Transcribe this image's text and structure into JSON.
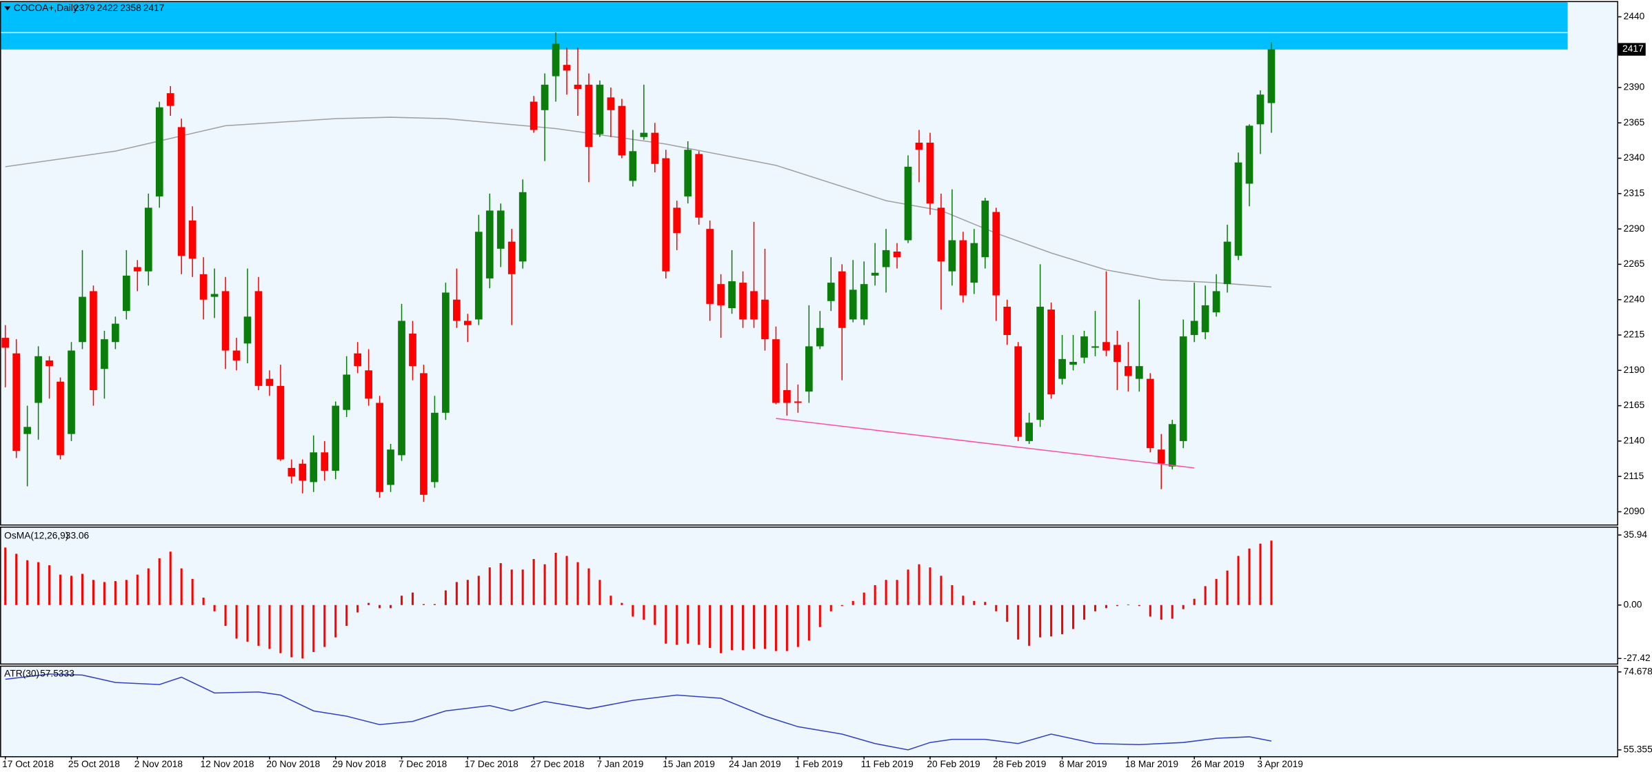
{
  "chart_data": [
    {
      "type": "candlestick",
      "title": "COCOA+,Daily",
      "categories": [
        "17 Oct 2018",
        null,
        null,
        null,
        null,
        null,
        "25 Oct 2018",
        null,
        null,
        null,
        null,
        null,
        "2 Nov 2018",
        null,
        null,
        null,
        null,
        null,
        "12 Nov 2018",
        null,
        null,
        null,
        null,
        null,
        "20 Nov 2018",
        null,
        null,
        null,
        null,
        null,
        "29 Nov 2018",
        null,
        null,
        null,
        null,
        null,
        "7 Dec 2018",
        null,
        null,
        null,
        null,
        null,
        "17 Dec 2018",
        null,
        null,
        null,
        null,
        null,
        "27 Dec 2018",
        null,
        null,
        null,
        null,
        null,
        "7 Jan 2019",
        null,
        null,
        null,
        null,
        null,
        "15 Jan 2019",
        null,
        null,
        null,
        null,
        null,
        "24 Jan 2019",
        null,
        null,
        null,
        null,
        null,
        "1 Feb 2019",
        null,
        null,
        null,
        null,
        null,
        "11 Feb 2019",
        null,
        null,
        null,
        null,
        null,
        "20 Feb 2019",
        null,
        null,
        null,
        null,
        null,
        "28 Feb 2019",
        null,
        null,
        null,
        null,
        null,
        "8 Mar 2019",
        null,
        null,
        null,
        null,
        null,
        "18 Mar 2019",
        null,
        null,
        null,
        null,
        null,
        "26 Mar 2019",
        null,
        null,
        null,
        null,
        null,
        "3 Apr 2019",
        null
      ],
      "open": [
        2213,
        2202,
        2145,
        2167,
        2197,
        2182,
        2145,
        2210,
        2246,
        2191,
        2210,
        2232,
        2263,
        2260,
        2313,
        2386,
        2362,
        2296,
        2258,
        2242,
        2246,
        2204,
        2209,
        2246,
        2184,
        2179,
        2121,
        2124,
        2111,
        2132,
        2119,
        2162,
        2202,
        2190,
        2167,
        2109,
        2130,
        2216,
        2188,
        2111,
        2160,
        2240,
        2225,
        2226,
        2255,
        2276,
        2281,
        2267,
        2380,
        2374,
        2398,
        2406,
        2392,
        2392,
        2357,
        2383,
        2377,
        2324,
        2355,
        2358,
        2340,
        2305,
        2313,
        2343,
        2290,
        2251,
        2234,
        2252,
        2246,
        2240,
        2212,
        2176,
        2168,
        2175,
        2207,
        2239,
        2260,
        2226,
        2226,
        2257,
        2263,
        2274,
        2282,
        2351,
        2351,
        2305,
        2260,
        2282,
        2252,
        2270,
        2302,
        2235,
        2207,
        2140,
        2155,
        2233,
        2184,
        2194,
        2199,
        2206,
        2210,
        2208,
        2193,
        2184,
        2184,
        2134,
        2122,
        2140,
        2215,
        2217,
        2231,
        2251,
        2271,
        2322,
        2364,
        2379
      ],
      "high": [
        2222,
        2212,
        2165,
        2207,
        2200,
        2185,
        2210,
        2275,
        2250,
        2218,
        2228,
        2275,
        2268,
        2315,
        2380,
        2391,
        2368,
        2306,
        2270,
        2262,
        2256,
        2213,
        2262,
        2256,
        2190,
        2194,
        2127,
        2127,
        2144,
        2140,
        2168,
        2200,
        2210,
        2205,
        2172,
        2138,
        2237,
        2225,
        2194,
        2172,
        2252,
        2262,
        2230,
        2300,
        2315,
        2308,
        2290,
        2325,
        2384,
        2400,
        2429,
        2418,
        2418,
        2400,
        2395,
        2390,
        2382,
        2360,
        2392,
        2365,
        2346,
        2310,
        2352,
        2345,
        2296,
        2258,
        2275,
        2260,
        2295,
        2276,
        2221,
        2195,
        2180,
        2236,
        2232,
        2270,
        2265,
        2268,
        2267,
        2280,
        2290,
        2280,
        2342,
        2360,
        2358,
        2315,
        2318,
        2288,
        2290,
        2312,
        2305,
        2240,
        2210,
        2160,
        2265,
        2238,
        2215,
        2215,
        2218,
        2232,
        2260,
        2218,
        2210,
        2240,
        2188,
        2145,
        2155,
        2226,
        2252,
        2250,
        2258,
        2293,
        2344,
        2364,
        2388,
        2422
      ],
      "low": [
        2178,
        2128,
        2108,
        2141,
        2170,
        2127,
        2140,
        2205,
        2165,
        2170,
        2205,
        2226,
        2246,
        2250,
        2305,
        2370,
        2258,
        2256,
        2226,
        2227,
        2191,
        2190,
        2195,
        2176,
        2172,
        2126,
        2110,
        2103,
        2104,
        2112,
        2113,
        2157,
        2188,
        2165,
        2100,
        2104,
        2126,
        2183,
        2097,
        2107,
        2155,
        2220,
        2210,
        2222,
        2248,
        2263,
        2222,
        2262,
        2358,
        2338,
        2380,
        2385,
        2370,
        2323,
        2355,
        2355,
        2340,
        2320,
        2353,
        2330,
        2255,
        2275,
        2308,
        2293,
        2225,
        2213,
        2230,
        2220,
        2220,
        2204,
        2166,
        2158,
        2160,
        2167,
        2205,
        2232,
        2183,
        2224,
        2222,
        2250,
        2245,
        2262,
        2280,
        2323,
        2300,
        2233,
        2250,
        2238,
        2244,
        2262,
        2225,
        2208,
        2140,
        2138,
        2150,
        2170,
        2180,
        2190,
        2195,
        2200,
        2200,
        2176,
        2175,
        2175,
        2132,
        2106,
        2120,
        2135,
        2210,
        2212,
        2228,
        2245,
        2268,
        2306,
        2343,
        2358
      ],
      "close": [
        2206,
        2133,
        2150,
        2200,
        2193,
        2130,
        2204,
        2242,
        2176,
        2212,
        2223,
        2257,
        2260,
        2305,
        2376,
        2377,
        2271,
        2269,
        2240,
        2244,
        2204,
        2197,
        2228,
        2179,
        2179,
        2127,
        2115,
        2112,
        2132,
        2119,
        2165,
        2187,
        2193,
        2170,
        2104,
        2134,
        2225,
        2193,
        2102,
        2160,
        2245,
        2225,
        2222,
        2288,
        2303,
        2303,
        2258,
        2316,
        2360,
        2392,
        2421,
        2402,
        2389,
        2348,
        2392,
        2374,
        2342,
        2345,
        2358,
        2336,
        2260,
        2287,
        2346,
        2298,
        2237,
        2236,
        2253,
        2226,
        2226,
        2212,
        2167,
        2167,
        2167,
        2207,
        2220,
        2252,
        2220,
        2247,
        2251,
        2259,
        2275,
        2270,
        2334,
        2346,
        2308,
        2267,
        2282,
        2243,
        2280,
        2310,
        2243,
        2215,
        2143,
        2153,
        2235,
        2173,
        2198,
        2196,
        2214,
        2207,
        2204,
        2196,
        2186,
        2193,
        2135,
        2124,
        2152,
        2214,
        2225,
        2236,
        2246,
        2281,
        2337,
        2363,
        2385,
        2417
      ],
      "up_color": "#0b7d0b",
      "down_color": "#ff0000",
      "ylim": [
        2081,
        2450.4
      ],
      "yticks": [
        2440,
        2415,
        2390,
        2365,
        2340,
        2315,
        2290,
        2265,
        2240,
        2215,
        2190,
        2165,
        2140,
        2115,
        2090
      ],
      "ma": {
        "color": "#a0a0a0",
        "x": [
          0,
          10,
          20,
          30,
          35,
          40,
          50,
          60,
          70,
          80,
          85,
          90,
          95,
          100,
          105,
          110,
          115
        ],
        "values": [
          2334,
          2345,
          2363,
          2368,
          2369,
          2368,
          2361,
          2350,
          2335,
          2310,
          2303,
          2287,
          2273,
          2261,
          2254,
          2252,
          2249
        ]
      },
      "trendline": {
        "color": "#ff4da6",
        "x": [
          70,
          108
        ],
        "values": [
          2156,
          2121
        ]
      }
    },
    {
      "type": "bar",
      "title": "OsMA(12,26,9)",
      "values": [
        29.5,
        26.3,
        23,
        22,
        20.4,
        15.6,
        15,
        16,
        12.9,
        11.8,
        12.3,
        12.9,
        15.6,
        18.8,
        24,
        27.4,
        18.8,
        13.4,
        3.8,
        -3.2,
        -10.7,
        -17.2,
        -18.8,
        -20.9,
        -22.5,
        -24.7,
        -26.8,
        -27.4,
        -24.1,
        -21.5,
        -16.6,
        -10.7,
        -3.8,
        1.1,
        -1.6,
        -1.6,
        4.8,
        6.4,
        0.5,
        0.5,
        7.5,
        11.8,
        12.9,
        15,
        19.3,
        21.5,
        18.2,
        18.2,
        23.6,
        20.9,
        26.8,
        25.2,
        22,
        18.8,
        12.9,
        4.8,
        1.1,
        -5.9,
        -7.5,
        -10.2,
        -19.8,
        -20.4,
        -19.8,
        -20.4,
        -22,
        -24.7,
        -23.1,
        -23.1,
        -22.5,
        -22.5,
        -23.6,
        -23.6,
        -21.5,
        -18.2,
        -11.3,
        -3.2,
        -0.5,
        2.1,
        6.4,
        10.2,
        12.9,
        12.9,
        18.2,
        20.9,
        19.3,
        15,
        10.2,
        4.8,
        2.1,
        1.6,
        -3.2,
        -8.6,
        -17.7,
        -20.9,
        -16.6,
        -16.1,
        -15,
        -12.3,
        -7.5,
        -3.2,
        -1.6,
        -0.5,
        0.3,
        -0.5,
        -5.9,
        -7.5,
        -7,
        -2.1,
        3.2,
        9.7,
        13.4,
        17.7,
        25.2,
        29,
        31.5,
        33.06
      ],
      "color": "#ff0000",
      "ylim": [
        -30,
        39.7
      ],
      "yticks": [
        35.94,
        {
          "value": 0,
          "label": "0.00"
        },
        -27.42
      ]
    },
    {
      "type": "line",
      "title": "ATR(30)",
      "x": [
        0,
        4,
        7,
        10,
        14,
        16,
        19,
        23,
        25,
        28,
        31,
        34,
        37,
        40,
        44,
        46,
        49,
        53,
        57,
        61,
        65,
        69,
        72,
        76,
        79,
        82,
        84,
        86,
        89,
        92,
        95,
        99,
        103,
        107,
        110,
        113,
        115
      ],
      "values": [
        72.85,
        74.16,
        73.9,
        72.07,
        71.55,
        73.37,
        69.46,
        69.72,
        68.94,
        65.02,
        63.71,
        61.62,
        62.41,
        65.02,
        66.33,
        65.02,
        67.37,
        65.54,
        67.63,
        68.94,
        68.15,
        63.71,
        61.1,
        59.27,
        56.92,
        55.36,
        57.19,
        57.97,
        57.97,
        56.92,
        59.27,
        56.92,
        56.66,
        57.19,
        58.23,
        58.6,
        57.5333
      ],
      "color": "#3040c8",
      "ylim": [
        53.79,
        75.98
      ],
      "yticks": [
        74.6783,
        55.355
      ]
    }
  ]
}
